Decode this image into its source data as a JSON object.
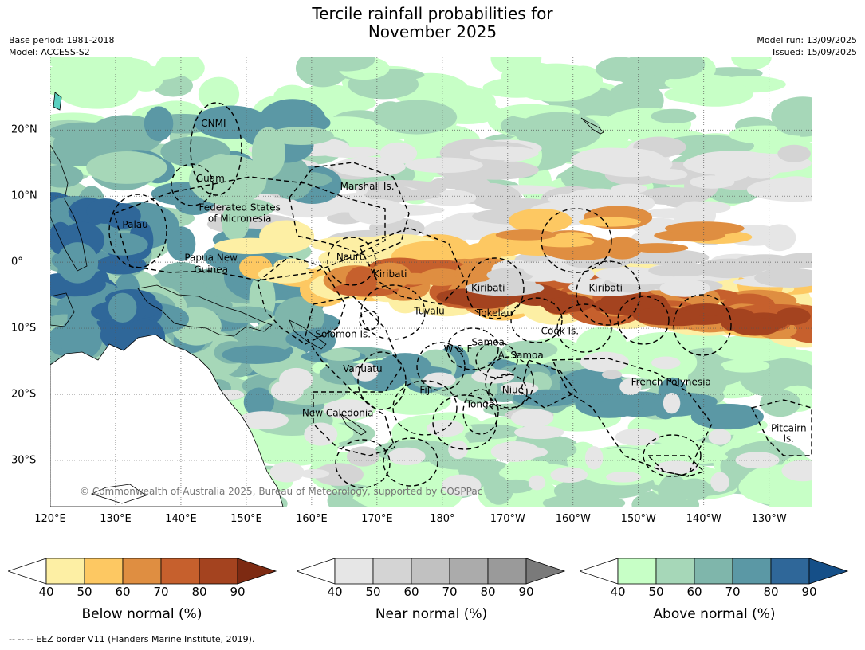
{
  "title": {
    "line1": "Tercile rainfall probabilities for",
    "line2": "November 2025"
  },
  "meta": {
    "base_period": "Base period: 1981-2018",
    "model": "Model: ACCESS-S2",
    "model_run": "Model run: 13/09/2025",
    "issued": "Issued: 15/09/2025"
  },
  "map": {
    "lon_labels": [
      "120°E",
      "130°E",
      "140°E",
      "150°E",
      "160°E",
      "170°E",
      "180°",
      "170°W",
      "160°W",
      "150°W",
      "140°W",
      "130°W"
    ],
    "lat_labels": [
      "20°N",
      "10°N",
      "0°",
      "10°S",
      "20°S",
      "30°S"
    ],
    "region_labels": [
      {
        "text": "CNMI",
        "lon": 145,
        "lat": 20.5
      },
      {
        "text": "Guam",
        "lon": 144.5,
        "lat": 12.2
      },
      {
        "text": "Marshall Is.",
        "lon": 168.5,
        "lat": 11
      },
      {
        "text": "Federated States",
        "lon": 149,
        "lat": 7.8
      },
      {
        "text": "of Micronesia",
        "lon": 149,
        "lat": 6.1
      },
      {
        "text": "Palau",
        "lon": 133,
        "lat": 5.2
      },
      {
        "text": "Papua New",
        "lon": 144.6,
        "lat": 0.2
      },
      {
        "text": "Guinea",
        "lon": 144.6,
        "lat": -1.6
      },
      {
        "text": "Nauru",
        "lon": 166,
        "lat": 0.3
      },
      {
        "text": "Kiribati",
        "lon": 172,
        "lat": -2.3
      },
      {
        "text": "Kiribati",
        "lon": 187,
        "lat": -4.4
      },
      {
        "text": "Kiribati",
        "lon": 205,
        "lat": -4.4
      },
      {
        "text": "Tuvalu",
        "lon": 178,
        "lat": -7.9
      },
      {
        "text": "Tokelau",
        "lon": 188,
        "lat": -8.2
      },
      {
        "text": "Cook Is.",
        "lon": 198,
        "lat": -10.9
      },
      {
        "text": "Solomon Is.",
        "lon": 164.8,
        "lat": -11.4
      },
      {
        "text": "Samoa",
        "lon": 187,
        "lat": -12.6
      },
      {
        "text": "W & F",
        "lon": 182.4,
        "lat": -13.6
      },
      {
        "text": "A. Samoa",
        "lon": 192,
        "lat": -14.6
      },
      {
        "text": "Vanuatu",
        "lon": 167.8,
        "lat": -16.6
      },
      {
        "text": "French Polynesia",
        "lon": 215,
        "lat": -18.6
      },
      {
        "text": "Fiji",
        "lon": 177.5,
        "lat": -19.8
      },
      {
        "text": "Niue",
        "lon": 190.8,
        "lat": -19.8
      },
      {
        "text": "Tonga",
        "lon": 185.8,
        "lat": -22
      },
      {
        "text": "New Caledonia",
        "lon": 164,
        "lat": -23.3
      },
      {
        "text": "Pitcairn",
        "lon": 233,
        "lat": -25.6
      },
      {
        "text": "Is.",
        "lon": 233,
        "lat": -27.2
      }
    ],
    "credit": "© Commonwealth of Australia 2025, Bureau of Meteorology, supported by COSPPac",
    "colors": {
      "below": [
        "#fdefa4",
        "#fdc862",
        "#df8e41",
        "#c6602d",
        "#a4431f",
        "#7d2a12"
      ],
      "near": [
        "#e6e6e6",
        "#d4d4d4",
        "#c1c1c1",
        "#ababab",
        "#9a9a9a",
        "#7a7a7a"
      ],
      "above": [
        "#c7ffc6",
        "#a6d7b8",
        "#7fb6ab",
        "#5b98a5",
        "#2f6799",
        "#154f88"
      ],
      "boundary": "#000000"
    }
  },
  "legends": [
    {
      "id": "below",
      "title": "Below normal (%)",
      "ticks": [
        "40",
        "50",
        "60",
        "70",
        "80",
        "90"
      ]
    },
    {
      "id": "near",
      "title": "Near normal (%)",
      "ticks": [
        "40",
        "50",
        "60",
        "70",
        "80",
        "90"
      ]
    },
    {
      "id": "above",
      "title": "Above normal (%)",
      "ticks": [
        "40",
        "50",
        "60",
        "70",
        "80",
        "90"
      ]
    }
  ],
  "footnote": "--  --  -- EEZ border V11 (Flanders Marine Institute, 2019)."
}
